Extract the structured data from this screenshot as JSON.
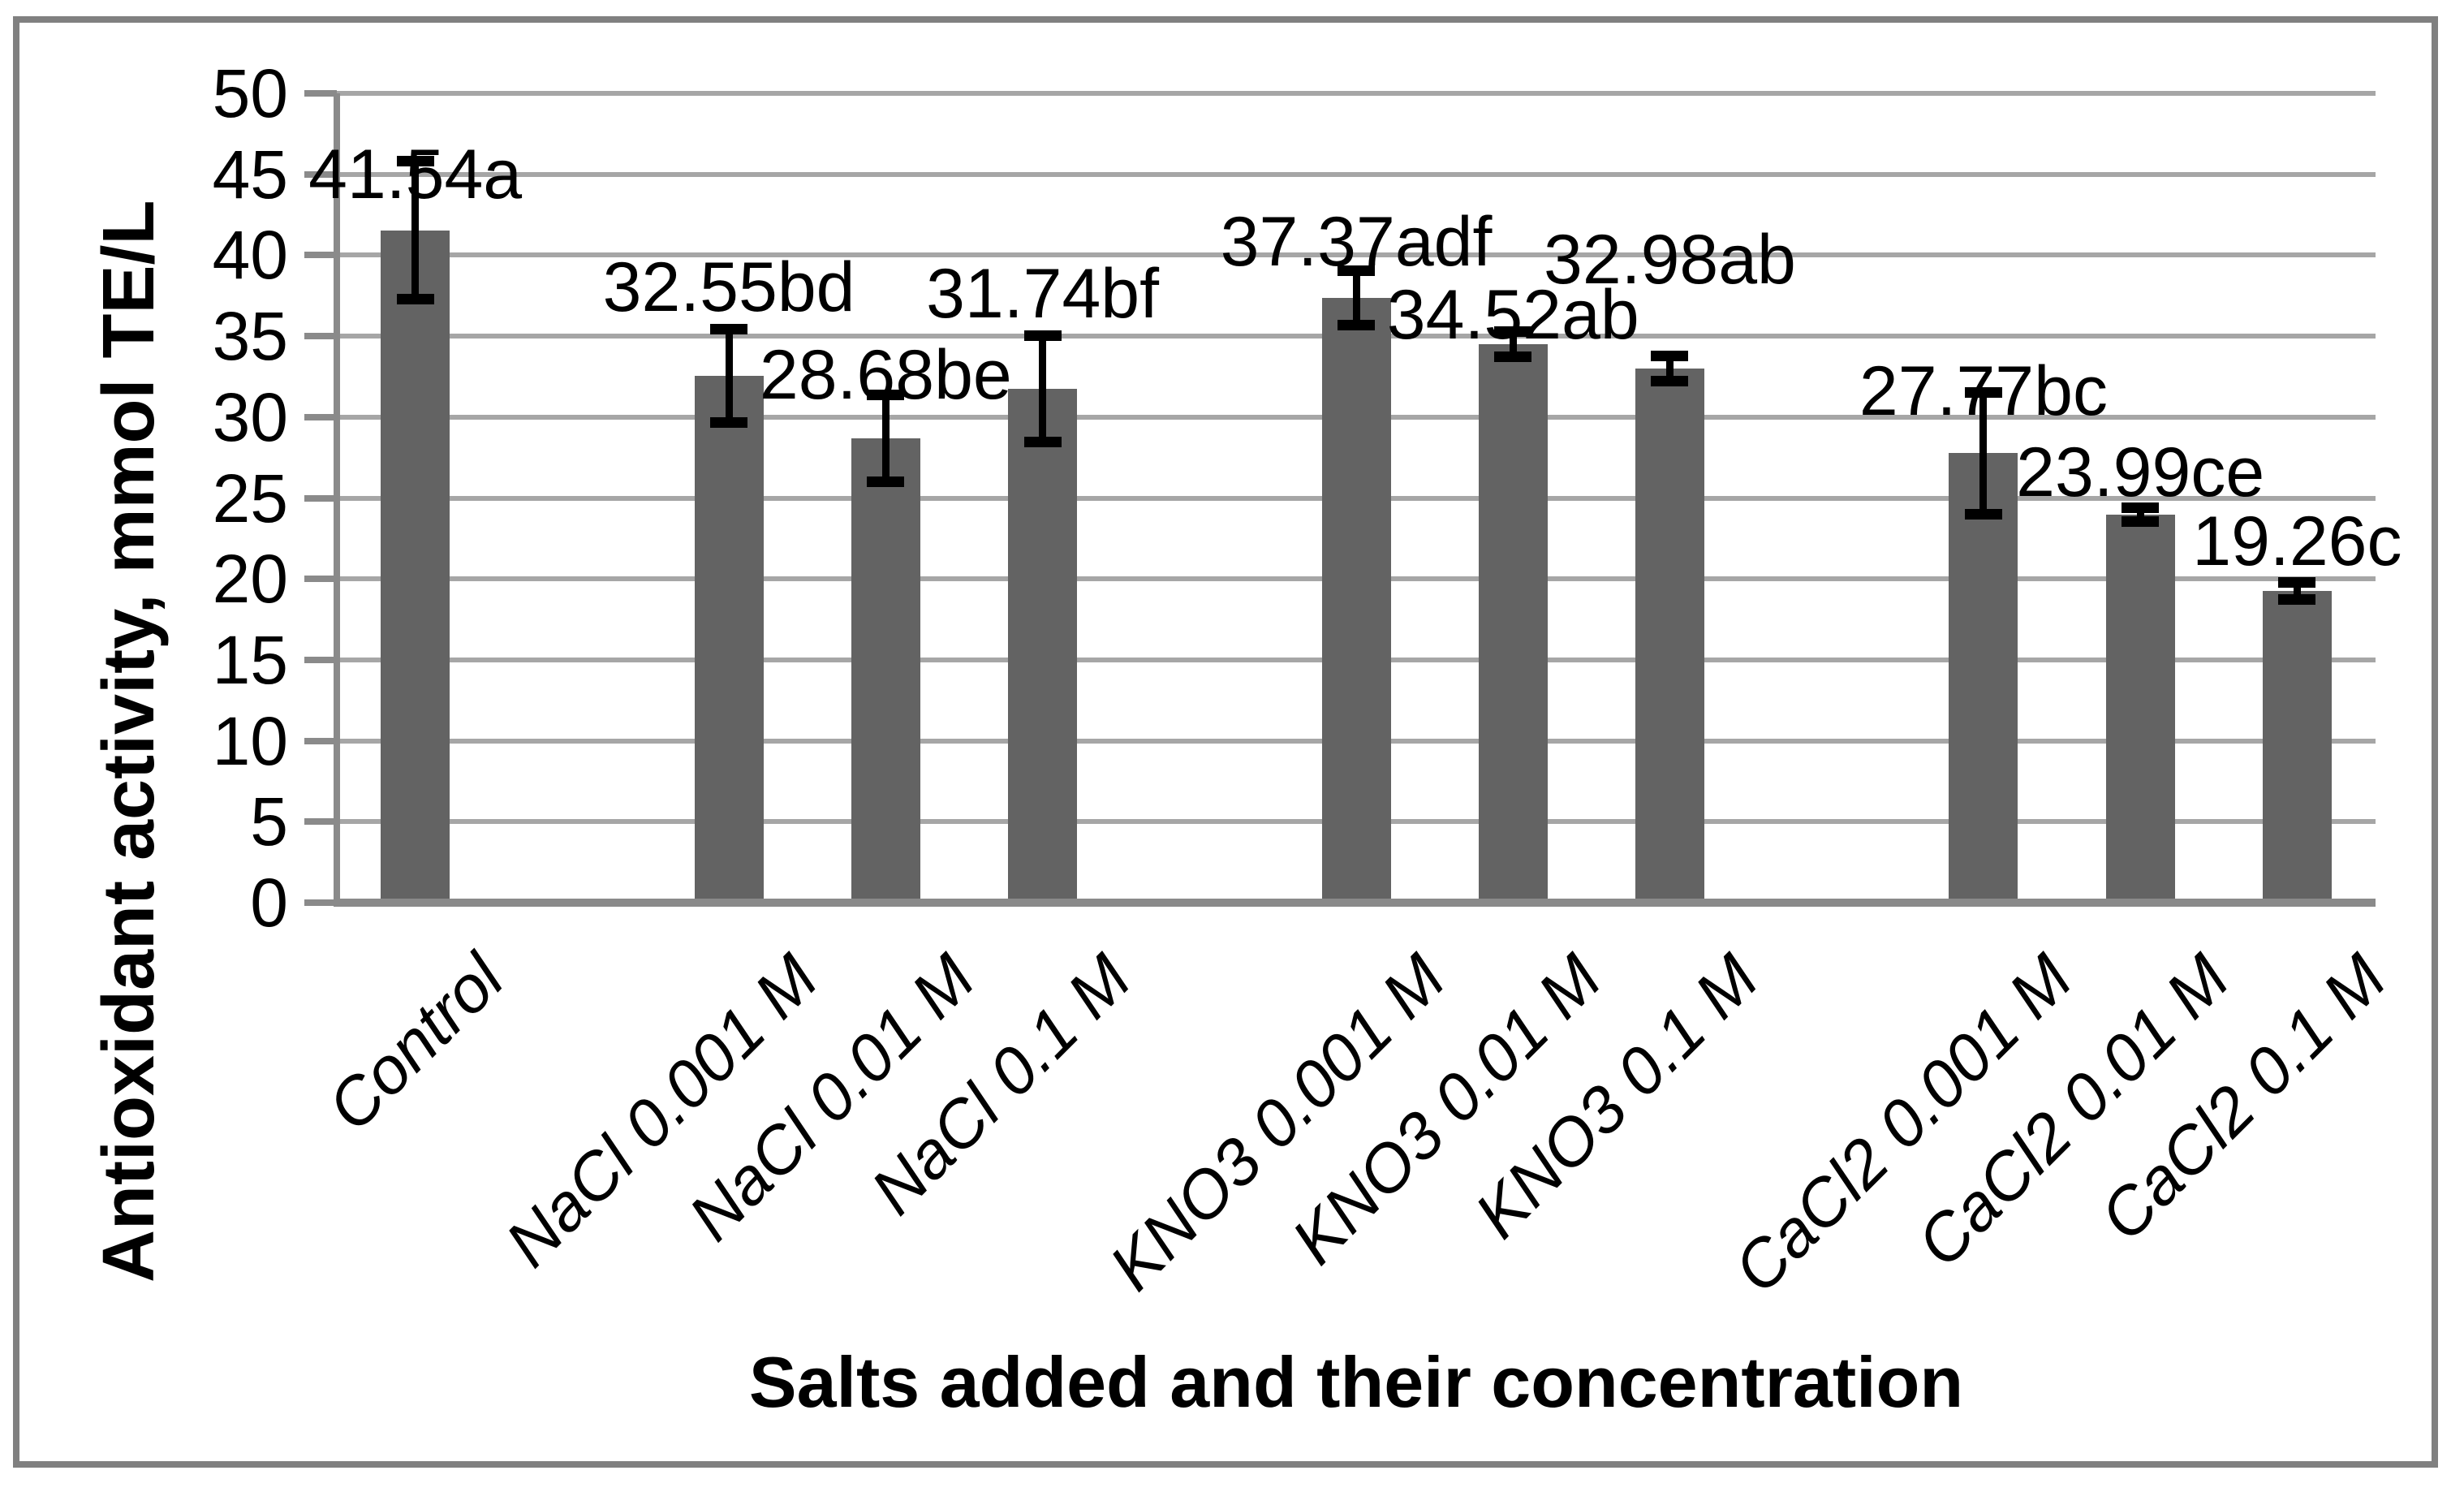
{
  "figure": {
    "background_color": "#ffffff",
    "border_color": "#808080"
  },
  "chart_data": {
    "type": "bar",
    "title": "",
    "xlabel": "Salts added and their concentration",
    "ylabel": "Antioxidant activity, mmol TE/L",
    "ylim": [
      0,
      50
    ],
    "yticks": [
      0,
      5,
      10,
      15,
      20,
      25,
      30,
      35,
      40,
      45,
      50
    ],
    "grid": true,
    "legend": "none",
    "bar_color": "#636363",
    "grid_color": "#a6a6a6",
    "axis_color": "#8a8a8a",
    "error_bar_color": "#000000",
    "categories": [
      "Control",
      "NaCl 0.001 M",
      "NaCl 0.01 M",
      "NaCl 0.1 M",
      "KNO3 0.001 M",
      "KNO3 0.01 M",
      "KNO3 0.1 M",
      "CaCl2 0.001 M",
      "CaCl2 0.01 M",
      "CaCl2 0.1 M"
    ],
    "values": [
      41.54,
      32.55,
      28.68,
      31.74,
      37.37,
      34.52,
      32.98,
      27.77,
      23.99,
      19.26
    ],
    "data_labels": [
      "41.54a",
      "32.55bd",
      "28.68be",
      "31.74bf",
      "37.37adf",
      "34.52ab",
      "32.98ab",
      "27.77bc",
      "23.99ce",
      "19.26c"
    ],
    "error_bars_plus_minus": [
      4.5,
      3.1,
      2.9,
      3.5,
      1.9,
      1.0,
      1.0,
      4.0,
      0.65,
      0.75
    ],
    "label_center_values": [
      45.0,
      38.0,
      32.6,
      37.6,
      40.8,
      36.3,
      39.7,
      31.6,
      26.6,
      22.3
    ],
    "group_slots": [
      0,
      2,
      3,
      4,
      6,
      7,
      8,
      10,
      11,
      12
    ],
    "total_slots": 13
  }
}
